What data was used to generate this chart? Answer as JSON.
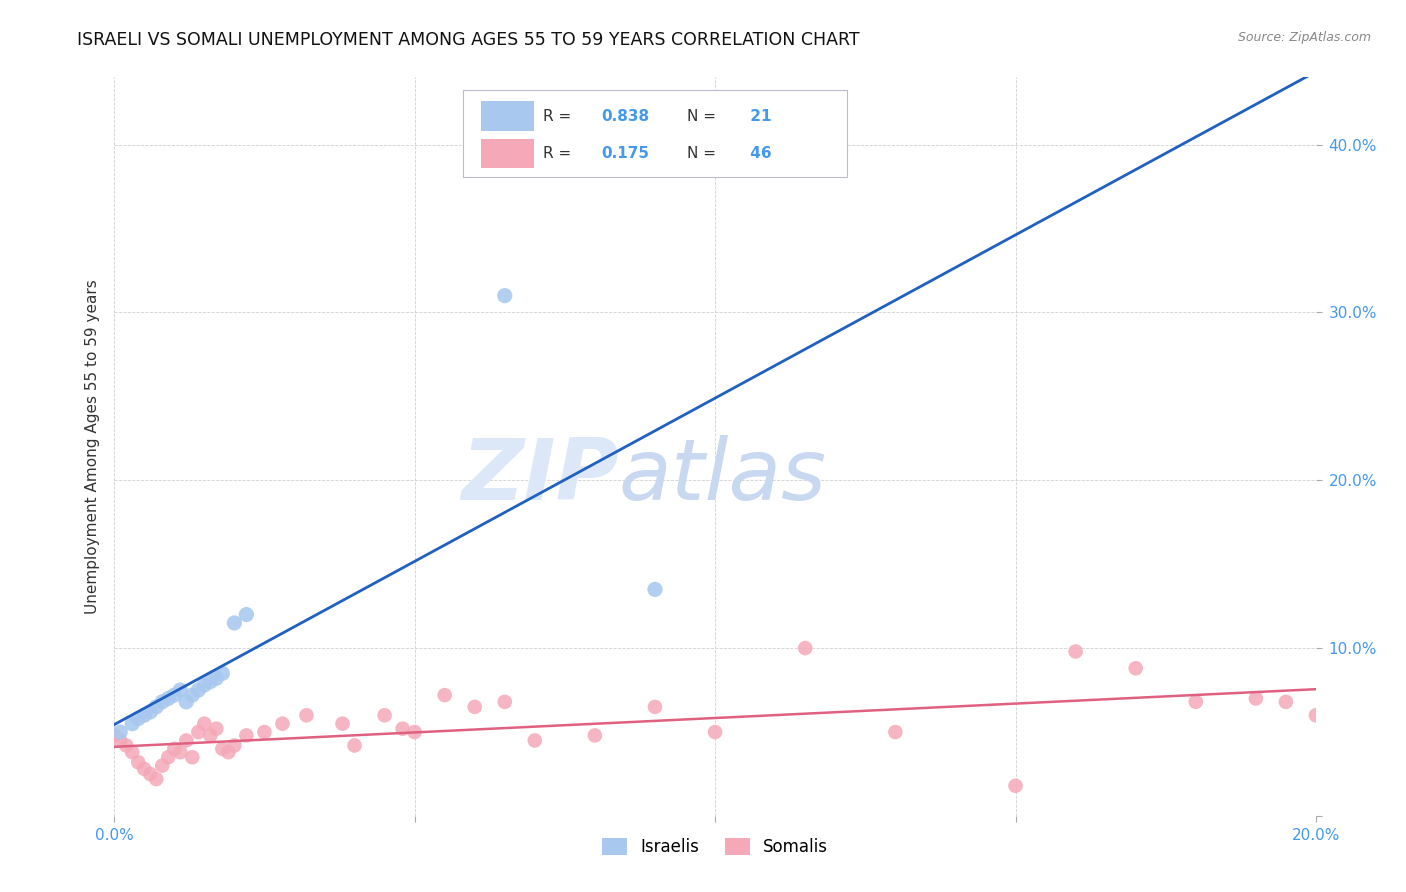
{
  "title": "ISRAELI VS SOMALI UNEMPLOYMENT AMONG AGES 55 TO 59 YEARS CORRELATION CHART",
  "source": "Source: ZipAtlas.com",
  "ylabel": "Unemployment Among Ages 55 to 59 years",
  "xlim": [
    0.0,
    0.2
  ],
  "ylim": [
    0.0,
    0.44
  ],
  "xtick_vals": [
    0.0,
    0.05,
    0.1,
    0.15,
    0.2
  ],
  "xtick_labels": [
    "0.0%",
    "",
    "",
    "",
    "20.0%"
  ],
  "ytick_vals": [
    0.0,
    0.1,
    0.2,
    0.3,
    0.4
  ],
  "ytick_labels": [
    "",
    "10.0%",
    "20.0%",
    "30.0%",
    "40.0%"
  ],
  "israeli_R": 0.838,
  "israeli_N": 21,
  "somali_R": 0.175,
  "somali_N": 46,
  "israeli_color": "#a8c8f0",
  "somali_color": "#f4a8b8",
  "israeli_line_color": "#2060c0",
  "somali_line_color": "#e06080",
  "background_color": "#ffffff",
  "grid_color": "#cccccc",
  "title_color": "#111111",
  "axis_tick_color": "#4499ee",
  "watermark_zip_color": "#dce8f8",
  "watermark_atlas_color": "#c8d8f0",
  "israeli_x": [
    0.001,
    0.003,
    0.004,
    0.005,
    0.006,
    0.007,
    0.008,
    0.009,
    0.01,
    0.011,
    0.012,
    0.013,
    0.014,
    0.015,
    0.016,
    0.017,
    0.018,
    0.02,
    0.022,
    0.065,
    0.09
  ],
  "israeli_y": [
    0.05,
    0.055,
    0.058,
    0.06,
    0.062,
    0.065,
    0.068,
    0.07,
    0.072,
    0.075,
    0.068,
    0.072,
    0.075,
    0.078,
    0.08,
    0.082,
    0.085,
    0.115,
    0.12,
    0.31,
    0.135
  ],
  "somali_x": [
    0.0,
    0.001,
    0.002,
    0.003,
    0.004,
    0.005,
    0.006,
    0.007,
    0.008,
    0.009,
    0.01,
    0.011,
    0.012,
    0.013,
    0.014,
    0.015,
    0.016,
    0.017,
    0.018,
    0.019,
    0.02,
    0.022,
    0.025,
    0.028,
    0.032,
    0.038,
    0.04,
    0.045,
    0.048,
    0.05,
    0.055,
    0.06,
    0.065,
    0.07,
    0.08,
    0.09,
    0.1,
    0.115,
    0.13,
    0.15,
    0.16,
    0.17,
    0.18,
    0.19,
    0.195,
    0.2
  ],
  "somali_y": [
    0.048,
    0.045,
    0.042,
    0.038,
    0.032,
    0.028,
    0.025,
    0.022,
    0.03,
    0.035,
    0.04,
    0.038,
    0.045,
    0.035,
    0.05,
    0.055,
    0.048,
    0.052,
    0.04,
    0.038,
    0.042,
    0.048,
    0.05,
    0.055,
    0.06,
    0.055,
    0.042,
    0.06,
    0.052,
    0.05,
    0.072,
    0.065,
    0.068,
    0.045,
    0.048,
    0.065,
    0.05,
    0.1,
    0.05,
    0.018,
    0.098,
    0.088,
    0.068,
    0.07,
    0.068,
    0.06
  ]
}
